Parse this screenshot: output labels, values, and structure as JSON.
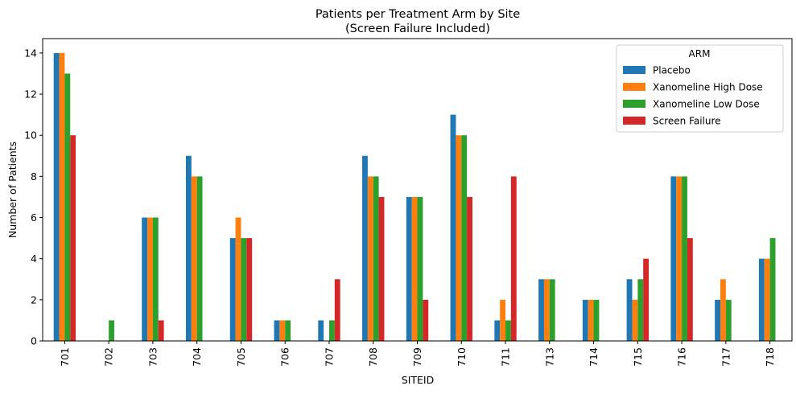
{
  "chart_data": {
    "type": "bar",
    "title": "Patients per Treatment Arm by Site",
    "subtitle": "(Screen Failure Included)",
    "xlabel": "SITEID",
    "ylabel": "Number of Patients",
    "ylim": [
      0,
      14.7
    ],
    "yticks": [
      0,
      2,
      4,
      6,
      8,
      10,
      12,
      14
    ],
    "grid": false,
    "legend": {
      "title": "ARM",
      "placement": "top-right"
    },
    "categories": [
      "701",
      "702",
      "703",
      "704",
      "705",
      "706",
      "707",
      "708",
      "709",
      "710",
      "711",
      "713",
      "714",
      "715",
      "716",
      "717",
      "718"
    ],
    "series": [
      {
        "name": "Placebo",
        "color": "#1f77b4",
        "values": [
          14,
          0,
          6,
          9,
          5,
          1,
          1,
          9,
          7,
          11,
          1,
          3,
          2,
          3,
          8,
          2,
          4
        ]
      },
      {
        "name": "Xanomeline High Dose",
        "color": "#ff7f0e",
        "values": [
          14,
          0,
          6,
          8,
          6,
          1,
          0,
          8,
          7,
          10,
          2,
          3,
          2,
          2,
          8,
          3,
          4
        ]
      },
      {
        "name": "Xanomeline Low Dose",
        "color": "#2ca02c",
        "values": [
          13,
          1,
          6,
          8,
          5,
          1,
          1,
          8,
          7,
          10,
          1,
          3,
          2,
          3,
          8,
          2,
          5
        ]
      },
      {
        "name": "Screen Failure",
        "color": "#d62728",
        "values": [
          10,
          0,
          1,
          0,
          5,
          0,
          3,
          7,
          2,
          7,
          8,
          0,
          0,
          4,
          5,
          0,
          0
        ]
      }
    ]
  }
}
